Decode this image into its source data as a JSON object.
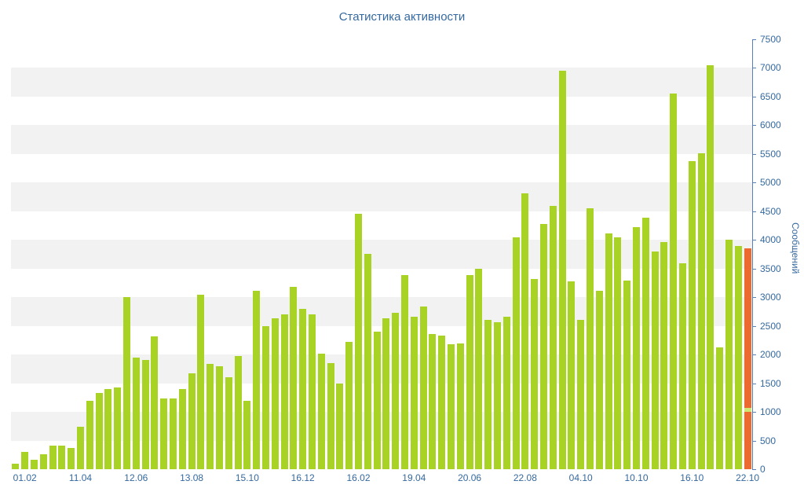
{
  "chart_data": {
    "type": "bar",
    "title": "Статистика активности",
    "ylabel": "Сообщений",
    "xlabel": "",
    "ylim": [
      0,
      7500
    ],
    "y_tick_interval": 500,
    "y_ticks": [
      0,
      500,
      1000,
      1500,
      2000,
      2500,
      3000,
      3500,
      4000,
      4500,
      5000,
      5500,
      6000,
      6500,
      7000,
      7500
    ],
    "x_tick_labels": [
      "01.02",
      "11.04",
      "12.06",
      "13.08",
      "15.10",
      "16.12",
      "16.02",
      "19.04",
      "20.06",
      "22.08",
      "04.10",
      "10.10",
      "16.10",
      "22.10"
    ],
    "x_tick_indices": [
      1,
      7,
      13,
      19,
      25,
      31,
      37,
      43,
      49,
      55,
      61,
      67,
      73,
      79
    ],
    "values": [
      100,
      300,
      170,
      260,
      410,
      410,
      370,
      740,
      1190,
      1330,
      1400,
      1430,
      3000,
      1950,
      1900,
      2320,
      1230,
      1230,
      1400,
      1670,
      3040,
      1840,
      1800,
      1600,
      1970,
      1190,
      3110,
      2490,
      2630,
      2700,
      3180,
      2800,
      2700,
      2020,
      1850,
      1490,
      2220,
      4450,
      3760,
      2400,
      2630,
      2730,
      3390,
      2660,
      2840,
      2360,
      2330,
      2180,
      2200,
      3390,
      3500,
      2600,
      2560,
      2660,
      4040,
      4810,
      3320,
      4280,
      4590,
      6950,
      3280,
      2600,
      4550,
      3110,
      4110,
      4040,
      3290,
      4230,
      4390,
      3800,
      3960,
      6560,
      3590,
      5370,
      5510,
      7050,
      2120,
      4000,
      3900,
      3850
    ],
    "bar_color": "#a8d324",
    "last_bar_color": "#ec6a2f",
    "last_bar_marker": {
      "value": 1000,
      "color": "#cfe873"
    },
    "stripe_color": "#f2f2f2",
    "background": "#ffffff",
    "grid": "striped-horizontal-bands",
    "legend": "none",
    "axis_color": "#5580bb",
    "label_color": "#35699f"
  }
}
